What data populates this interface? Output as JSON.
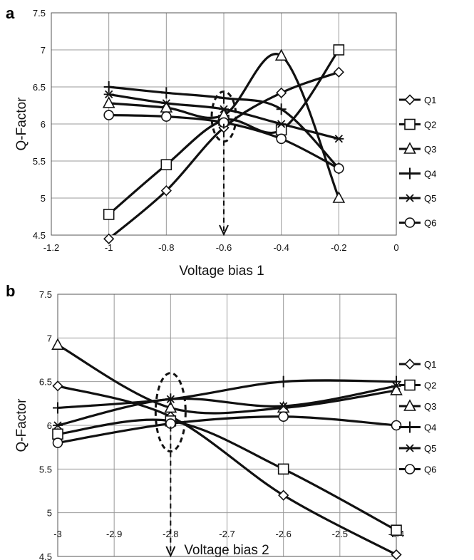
{
  "chart_data": [
    {
      "type": "line",
      "panel_label": "a",
      "xlabel": "Voltage bias 1",
      "ylabel": "Q-Factor",
      "xlim": [
        -1.2,
        0
      ],
      "ylim": [
        4.5,
        7.5
      ],
      "xticks": [
        -1.2,
        -1,
        -0.8,
        -0.6,
        -0.4,
        -0.2,
        0
      ],
      "xtick_labels": [
        "-1.2",
        "-1",
        "-0.8",
        "-0.6",
        "-0.4",
        "-0.2",
        "0"
      ],
      "yticks": [
        4.5,
        5,
        5.5,
        6,
        6.5,
        7,
        7.5
      ],
      "ytick_labels": [
        "4.5",
        "5",
        "5.5",
        "6",
        "6.5",
        "7",
        "7.5"
      ],
      "grid": true,
      "legend_position": "right",
      "annotation": {
        "type": "dashed ellipse with dashed down-arrow",
        "x": -0.6,
        "y": 6.1
      },
      "series": [
        {
          "name": "Q1",
          "marker": "diamond",
          "x": [
            -1,
            -0.8,
            -0.6,
            -0.4,
            -0.2
          ],
          "y": [
            4.45,
            5.1,
            5.95,
            6.42,
            6.7
          ]
        },
        {
          "name": "Q2",
          "marker": "square",
          "x": [
            -1,
            -0.8,
            -0.6,
            -0.4,
            -0.2
          ],
          "y": [
            4.78,
            5.45,
            6.05,
            5.92,
            7.0
          ]
        },
        {
          "name": "Q3",
          "marker": "triangle",
          "x": [
            -1,
            -0.8,
            -0.6,
            -0.4,
            -0.2
          ],
          "y": [
            6.28,
            6.22,
            6.12,
            6.92,
            5.0
          ]
        },
        {
          "name": "Q4",
          "marker": "plus",
          "x": [
            -1,
            -0.8,
            -0.6,
            -0.4,
            -0.2
          ],
          "y": [
            6.5,
            6.42,
            6.35,
            6.2,
            5.4
          ]
        },
        {
          "name": "Q5",
          "marker": "star",
          "x": [
            -1,
            -0.8,
            -0.6,
            -0.4,
            -0.2
          ],
          "y": [
            6.4,
            6.28,
            6.2,
            6.0,
            5.8
          ]
        },
        {
          "name": "Q6",
          "marker": "circle",
          "x": [
            -1,
            -0.8,
            -0.6,
            -0.4,
            -0.2
          ],
          "y": [
            6.12,
            6.1,
            6.02,
            5.8,
            5.4
          ]
        }
      ]
    },
    {
      "type": "line",
      "panel_label": "b",
      "xlabel": "Voltage bias 2",
      "ylabel": "Q-Factor",
      "xlim": [
        -3,
        -2.4
      ],
      "ylim": [
        4.5,
        7.5
      ],
      "xticks": [
        -3,
        -2.9,
        -2.8,
        -2.7,
        -2.6,
        -2.5,
        -2.4
      ],
      "xtick_labels": [
        "-3",
        "-2.9",
        "-2.8",
        "-2.7",
        "-2.6",
        "-2.5",
        "-2.4"
      ],
      "yticks": [
        4.5,
        5,
        5.5,
        6,
        6.5,
        7,
        7.5
      ],
      "ytick_labels": [
        "4.5",
        "5",
        "5.5",
        "6",
        "6.5",
        "7",
        "7.5"
      ],
      "grid": true,
      "legend_position": "right",
      "annotation": {
        "type": "dashed ellipse with dashed down-arrow",
        "x": -2.8,
        "y": 6.15
      },
      "series": [
        {
          "name": "Q1",
          "marker": "diamond",
          "x": [
            -3,
            -2.8,
            -2.6,
            -2.4
          ],
          "y": [
            6.45,
            6.1,
            5.2,
            4.52
          ]
        },
        {
          "name": "Q2",
          "marker": "square",
          "x": [
            -3,
            -2.8,
            -2.6,
            -2.4
          ],
          "y": [
            5.9,
            6.05,
            5.5,
            4.8
          ]
        },
        {
          "name": "Q3",
          "marker": "triangle",
          "x": [
            -3,
            -2.8,
            -2.6,
            -2.4
          ],
          "y": [
            6.92,
            6.2,
            6.2,
            6.4
          ]
        },
        {
          "name": "Q4",
          "marker": "plus",
          "x": [
            -3,
            -2.8,
            -2.6,
            -2.4
          ],
          "y": [
            6.2,
            6.3,
            6.5,
            6.5
          ]
        },
        {
          "name": "Q5",
          "marker": "star",
          "x": [
            -3,
            -2.8,
            -2.6,
            -2.4
          ],
          "y": [
            6.0,
            6.3,
            6.22,
            6.45
          ]
        },
        {
          "name": "Q6",
          "marker": "circle",
          "x": [
            -3,
            -2.8,
            -2.6,
            -2.4
          ],
          "y": [
            5.8,
            6.02,
            6.1,
            6.0
          ]
        }
      ]
    }
  ]
}
